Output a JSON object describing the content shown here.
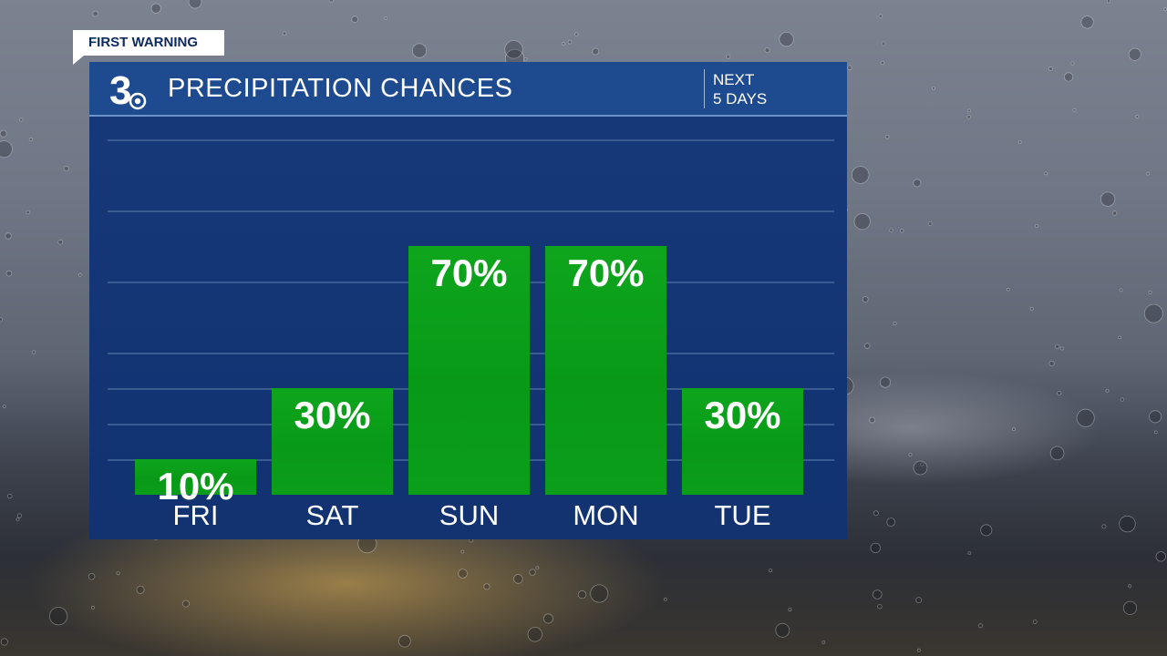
{
  "badge": "FIRST WARNING",
  "header": {
    "title": "PRECIPITATION CHANCES",
    "subtitle_line1": "NEXT",
    "subtitle_line2": "5 DAYS"
  },
  "logo": {
    "numeral": "3",
    "icon": "cbs-eye-icon"
  },
  "colors": {
    "panel": "#133574",
    "header": "#1e4a8f",
    "bar": "#0ba31b"
  },
  "chart_data": {
    "type": "bar",
    "title": "PRECIPITATION CHANCES",
    "categories": [
      "FRI",
      "SAT",
      "SUN",
      "MON",
      "TUE"
    ],
    "values": [
      10,
      30,
      70,
      70,
      30
    ],
    "labels": [
      "10%",
      "30%",
      "70%",
      "70%",
      "30%"
    ],
    "unit": "%",
    "ylim": [
      0,
      100
    ],
    "grid": true
  }
}
